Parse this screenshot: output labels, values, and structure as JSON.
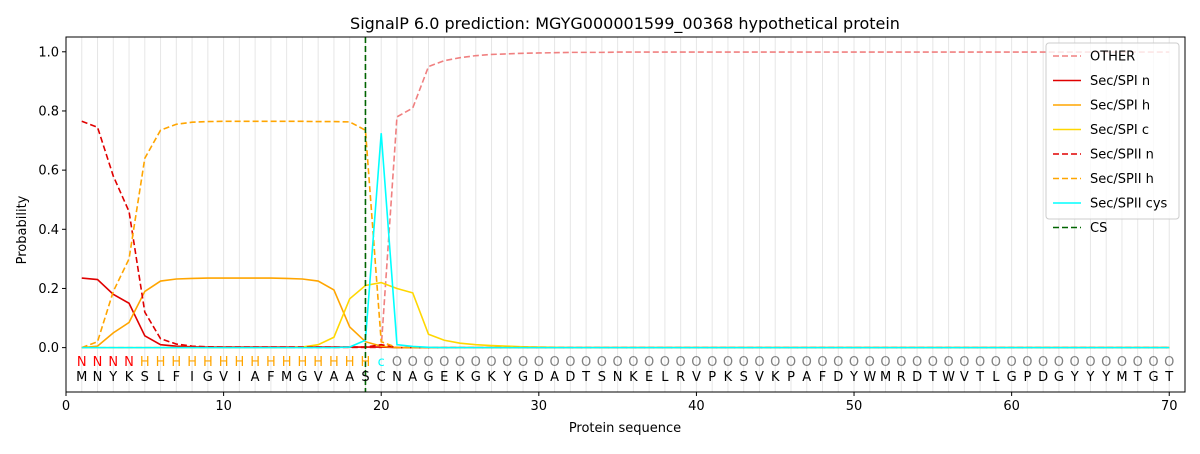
{
  "chart_data": {
    "type": "line",
    "title": "SignalP 6.0 prediction: MGYG000001599_00368 hypothetical protein",
    "xlabel": "Protein sequence",
    "ylabel": "Probability",
    "xlim": [
      0,
      71
    ],
    "ylim": [
      -0.15,
      1.05
    ],
    "xticks": [
      0,
      10,
      20,
      30,
      40,
      50,
      60,
      70
    ],
    "yticks": [
      0.0,
      0.2,
      0.4,
      0.6,
      0.8,
      1.0
    ],
    "xtick_labels": [
      "0",
      "10",
      "20",
      "30",
      "40",
      "50",
      "60",
      "70"
    ],
    "ytick_labels": [
      "0.0",
      "0.2",
      "0.4",
      "0.6",
      "0.8",
      "1.0"
    ],
    "grid": "vertical lines at each residue",
    "legend_position": "top-right",
    "sequence": [
      "M",
      "N",
      "Y",
      "K",
      "S",
      "L",
      "F",
      "I",
      "G",
      "V",
      "I",
      "A",
      "F",
      "M",
      "G",
      "V",
      "A",
      "A",
      "S",
      "C",
      "N",
      "A",
      "G",
      "E",
      "K",
      "G",
      "K",
      "Y",
      "G",
      "D",
      "A",
      "D",
      "T",
      "S",
      "N",
      "K",
      "E",
      "L",
      "R",
      "V",
      "P",
      "K",
      "S",
      "V",
      "K",
      "P",
      "A",
      "F",
      "D",
      "Y",
      "W",
      "M",
      "R",
      "D",
      "T",
      "W",
      "V",
      "T",
      "L",
      "G",
      "P",
      "D",
      "G",
      "Y",
      "Y",
      "Y",
      "M",
      "T",
      "G",
      "T"
    ],
    "labels": [
      "N",
      "N",
      "N",
      "N",
      "H",
      "H",
      "H",
      "H",
      "H",
      "H",
      "H",
      "H",
      "H",
      "H",
      "H",
      "H",
      "H",
      "H",
      "H",
      "c",
      "O",
      "O",
      "O",
      "O",
      "O",
      "O",
      "O",
      "O",
      "O",
      "O",
      "O",
      "O",
      "O",
      "O",
      "O",
      "O",
      "O",
      "O",
      "O",
      "O",
      "O",
      "O",
      "O",
      "O",
      "O",
      "O",
      "O",
      "O",
      "O",
      "O",
      "O",
      "O",
      "O",
      "O",
      "O",
      "O",
      "O",
      "O",
      "O",
      "O",
      "O",
      "O",
      "O",
      "O",
      "O",
      "O",
      "O",
      "O",
      "O",
      "O"
    ],
    "label_colors": {
      "N": "#ff0000",
      "H": "#ffa500",
      "c": "#00ffff",
      "O": "#808080"
    },
    "cleavage_site": 19,
    "series": [
      {
        "name": "OTHER",
        "color": "#f08080",
        "dash": "dashed",
        "values": [
          0.0,
          0.0,
          0.0,
          0.0,
          0.0,
          0.0,
          0.0,
          0.0,
          0.0,
          0.0,
          0.0,
          0.0,
          0.0,
          0.0,
          0.0,
          0.0,
          0.0,
          0.0,
          0.0,
          0.0,
          0.78,
          0.81,
          0.95,
          0.97,
          0.98,
          0.987,
          0.991,
          0.993,
          0.995,
          0.996,
          0.997,
          0.998,
          0.998,
          0.998,
          0.999,
          0.999,
          0.999,
          0.999,
          0.999,
          0.999,
          0.999,
          0.999,
          0.999,
          0.999,
          0.999,
          0.999,
          0.999,
          0.999,
          0.999,
          0.999,
          0.999,
          0.999,
          0.999,
          0.999,
          0.999,
          0.999,
          0.999,
          0.999,
          0.999,
          0.999,
          0.999,
          0.999,
          0.999,
          0.999,
          0.999,
          0.999,
          0.999,
          0.999,
          0.999,
          0.999
        ]
      },
      {
        "name": "Sec/SPI n",
        "color": "#e00000",
        "dash": "solid",
        "values": [
          0.235,
          0.23,
          0.18,
          0.15,
          0.04,
          0.01,
          0.005,
          0.003,
          0.002,
          0.002,
          0.002,
          0.002,
          0.002,
          0.002,
          0.002,
          0.002,
          0.002,
          0.002,
          0.002,
          0.002,
          0.0,
          0.0,
          0.0,
          0.0,
          0.0,
          0.0,
          0.0,
          0.0,
          0.0,
          0.0,
          0.0,
          0.0,
          0.0,
          0.0,
          0.0,
          0.0,
          0.0,
          0.0,
          0.0,
          0.0,
          0.0,
          0.0,
          0.0,
          0.0,
          0.0,
          0.0,
          0.0,
          0.0,
          0.0,
          0.0,
          0.0,
          0.0,
          0.0,
          0.0,
          0.0,
          0.0,
          0.0,
          0.0,
          0.0,
          0.0,
          0.0,
          0.0,
          0.0,
          0.0,
          0.0,
          0.0,
          0.0,
          0.0,
          0.0,
          0.0
        ]
      },
      {
        "name": "Sec/SPI h",
        "color": "#ffa500",
        "dash": "solid",
        "values": [
          0.0,
          0.005,
          0.05,
          0.085,
          0.19,
          0.225,
          0.232,
          0.234,
          0.235,
          0.235,
          0.235,
          0.235,
          0.235,
          0.234,
          0.232,
          0.225,
          0.195,
          0.07,
          0.02,
          0.005,
          0.0,
          0.0,
          0.0,
          0.0,
          0.0,
          0.0,
          0.0,
          0.0,
          0.0,
          0.0,
          0.0,
          0.0,
          0.0,
          0.0,
          0.0,
          0.0,
          0.0,
          0.0,
          0.0,
          0.0,
          0.0,
          0.0,
          0.0,
          0.0,
          0.0,
          0.0,
          0.0,
          0.0,
          0.0,
          0.0,
          0.0,
          0.0,
          0.0,
          0.0,
          0.0,
          0.0,
          0.0,
          0.0,
          0.0,
          0.0,
          0.0,
          0.0,
          0.0,
          0.0,
          0.0,
          0.0,
          0.0,
          0.0,
          0.0,
          0.0
        ]
      },
      {
        "name": "Sec/SPI c",
        "color": "#ffd700",
        "dash": "solid",
        "values": [
          0.0,
          0.0,
          0.0,
          0.0,
          0.0,
          0.0,
          0.0,
          0.0,
          0.0,
          0.0,
          0.0,
          0.0,
          0.0,
          0.0,
          0.002,
          0.01,
          0.035,
          0.165,
          0.21,
          0.22,
          0.2,
          0.185,
          0.045,
          0.025,
          0.015,
          0.01,
          0.007,
          0.005,
          0.003,
          0.002,
          0.001,
          0.0,
          0.0,
          0.0,
          0.0,
          0.0,
          0.0,
          0.0,
          0.0,
          0.0,
          0.0,
          0.0,
          0.0,
          0.0,
          0.0,
          0.0,
          0.0,
          0.0,
          0.0,
          0.0,
          0.0,
          0.0,
          0.0,
          0.0,
          0.0,
          0.0,
          0.0,
          0.0,
          0.0,
          0.0,
          0.0,
          0.0,
          0.0,
          0.0,
          0.0,
          0.0,
          0.0,
          0.0,
          0.0,
          0.0
        ]
      },
      {
        "name": "Sec/SPII n",
        "color": "#e00000",
        "dash": "dashed",
        "values": [
          0.765,
          0.745,
          0.58,
          0.46,
          0.12,
          0.03,
          0.012,
          0.005,
          0.003,
          0.002,
          0.002,
          0.002,
          0.002,
          0.002,
          0.002,
          0.002,
          0.002,
          0.002,
          0.002,
          0.01,
          0.0,
          0.0,
          0.0,
          0.0,
          0.0,
          0.0,
          0.0,
          0.0,
          0.0,
          0.0,
          0.0,
          0.0,
          0.0,
          0.0,
          0.0,
          0.0,
          0.0,
          0.0,
          0.0,
          0.0,
          0.0,
          0.0,
          0.0,
          0.0,
          0.0,
          0.0,
          0.0,
          0.0,
          0.0,
          0.0,
          0.0,
          0.0,
          0.0,
          0.0,
          0.0,
          0.0,
          0.0,
          0.0,
          0.0,
          0.0,
          0.0,
          0.0,
          0.0,
          0.0,
          0.0,
          0.0,
          0.0,
          0.0,
          0.0,
          0.0
        ]
      },
      {
        "name": "Sec/SPII h",
        "color": "#ffa500",
        "dash": "dashed",
        "values": [
          0.0,
          0.02,
          0.19,
          0.3,
          0.64,
          0.735,
          0.755,
          0.762,
          0.764,
          0.765,
          0.765,
          0.765,
          0.765,
          0.765,
          0.765,
          0.764,
          0.764,
          0.763,
          0.735,
          0.02,
          0.0,
          0.0,
          0.0,
          0.0,
          0.0,
          0.0,
          0.0,
          0.0,
          0.0,
          0.0,
          0.0,
          0.0,
          0.0,
          0.0,
          0.0,
          0.0,
          0.0,
          0.0,
          0.0,
          0.0,
          0.0,
          0.0,
          0.0,
          0.0,
          0.0,
          0.0,
          0.0,
          0.0,
          0.0,
          0.0,
          0.0,
          0.0,
          0.0,
          0.0,
          0.0,
          0.0,
          0.0,
          0.0,
          0.0,
          0.0,
          0.0,
          0.0,
          0.0,
          0.0,
          0.0,
          0.0,
          0.0,
          0.0,
          0.0,
          0.0
        ]
      },
      {
        "name": "Sec/SPII cys",
        "color": "#00ffff",
        "dash": "solid",
        "values": [
          0.0,
          0.0,
          0.0,
          0.0,
          0.0,
          0.0,
          0.0,
          0.0,
          0.0,
          0.0,
          0.0,
          0.0,
          0.0,
          0.0,
          0.0,
          0.0,
          0.0,
          0.002,
          0.025,
          0.725,
          0.01,
          0.004,
          0.001,
          0.0,
          0.0,
          0.0,
          0.0,
          0.0,
          0.0,
          0.0,
          0.0,
          0.0,
          0.0,
          0.0,
          0.0,
          0.0,
          0.0,
          0.0,
          0.0,
          0.0,
          0.0,
          0.0,
          0.0,
          0.0,
          0.0,
          0.0,
          0.0,
          0.0,
          0.0,
          0.0,
          0.0,
          0.0,
          0.0,
          0.0,
          0.0,
          0.0,
          0.0,
          0.0,
          0.0,
          0.0,
          0.0,
          0.0,
          0.0,
          0.0,
          0.0,
          0.0,
          0.0,
          0.0,
          0.0,
          0.0
        ]
      },
      {
        "name": "CS",
        "color": "#006400",
        "dash": "dashed",
        "x": 19
      }
    ]
  }
}
